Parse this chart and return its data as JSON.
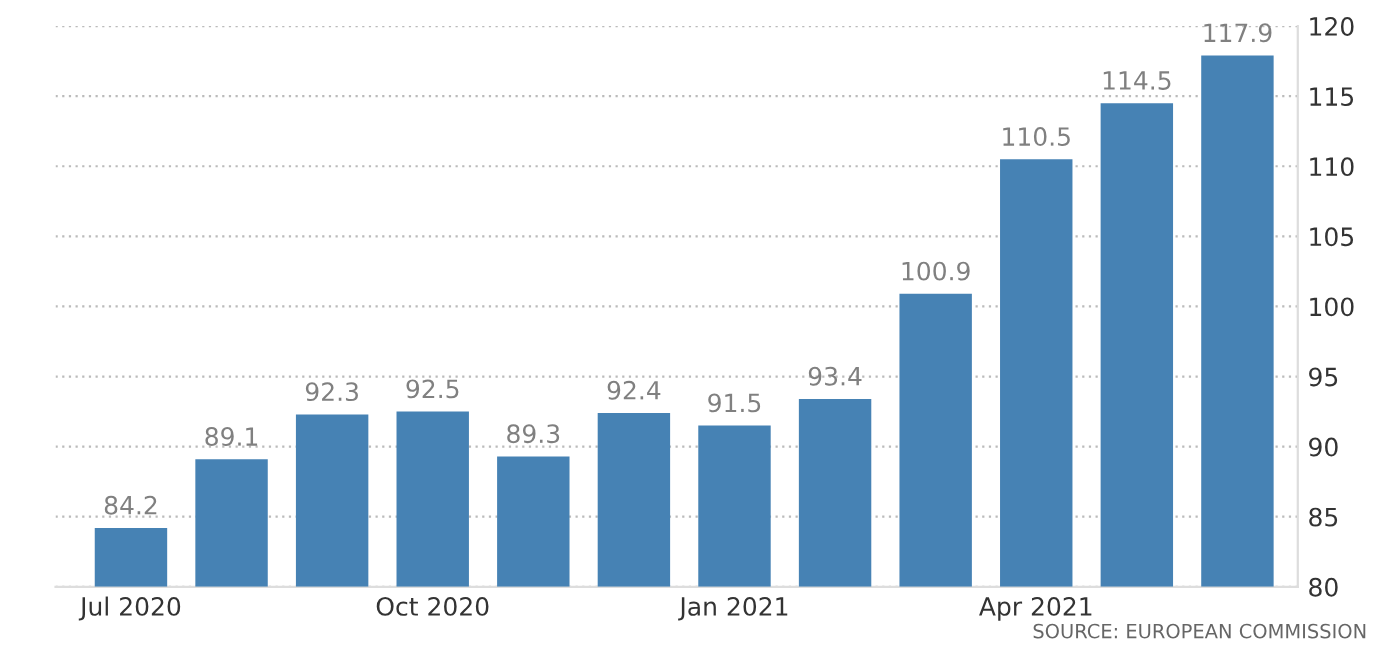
{
  "chart_data": {
    "type": "bar",
    "categories": [
      "Jul 2020",
      null,
      null,
      "Oct 2020",
      null,
      null,
      "Jan 2021",
      null,
      null,
      "Apr 2021",
      null,
      null
    ],
    "values": [
      84.2,
      89.1,
      92.3,
      92.5,
      89.3,
      92.4,
      91.5,
      93.4,
      100.9,
      110.5,
      114.5,
      117.9
    ],
    "color": "#4682b4",
    "data_labels": true,
    "ylim": [
      80,
      120
    ],
    "yticks": [
      80,
      85,
      90,
      95,
      100,
      105,
      110,
      115,
      120
    ],
    "grid": "y",
    "annotations": [
      "SOURCE: EUROPEAN COMMISSION"
    ]
  }
}
